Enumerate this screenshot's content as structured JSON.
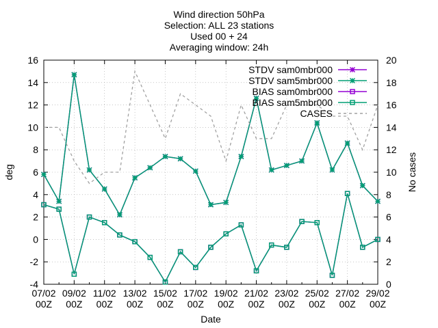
{
  "chart_data": {
    "type": "line",
    "title_lines": [
      "Wind direction 50hPa",
      "Selection: ALL     23 stations",
      "Used 00 + 24",
      "Averaging window: 24h"
    ],
    "xlabel": "Date",
    "ylabel": "deg",
    "y2label": "No cases",
    "ylim": [
      -4,
      16
    ],
    "y2lim": [
      0,
      20
    ],
    "yticks": [
      -4,
      -2,
      0,
      2,
      4,
      6,
      8,
      10,
      12,
      14,
      16
    ],
    "y2ticks": [
      0,
      2,
      4,
      6,
      8,
      10,
      12,
      14,
      16,
      18,
      20
    ],
    "xticks": [
      {
        "line1": "07/02",
        "line2": "00Z"
      },
      {
        "line1": "09/02",
        "line2": "00Z"
      },
      {
        "line1": "11/02",
        "line2": "00Z"
      },
      {
        "line1": "13/02",
        "line2": "00Z"
      },
      {
        "line1": "15/02",
        "line2": "00Z"
      },
      {
        "line1": "17/02",
        "line2": "00Z"
      },
      {
        "line1": "19/02",
        "line2": "00Z"
      },
      {
        "line1": "21/02",
        "line2": "00Z"
      },
      {
        "line1": "23/02",
        "line2": "00Z"
      },
      {
        "line1": "25/02",
        "line2": "00Z"
      },
      {
        "line1": "27/02",
        "line2": "00Z"
      },
      {
        "line1": "29/02",
        "line2": "00Z"
      }
    ],
    "grid": true,
    "legend_position": "top-right",
    "series": [
      {
        "name": "STDV sam0mbr000",
        "color": "#9400d3",
        "marker": "star",
        "dashed": false,
        "axis": "y",
        "values": [
          5.8,
          3.4,
          14.7,
          6.2,
          4.5,
          2.2,
          5.5,
          6.4,
          7.4,
          7.2,
          6.1,
          3.1,
          3.3,
          7.4,
          12.6,
          6.2,
          6.6,
          7.0,
          10.4,
          6.2,
          8.6,
          4.8,
          3.4
        ]
      },
      {
        "name": "STDV sam5mbr000",
        "color": "#009e73",
        "marker": "star",
        "dashed": false,
        "axis": "y",
        "values": [
          5.8,
          3.4,
          14.7,
          6.2,
          4.5,
          2.2,
          5.5,
          6.4,
          7.4,
          7.2,
          6.1,
          3.1,
          3.3,
          7.4,
          12.6,
          6.2,
          6.6,
          7.0,
          10.4,
          6.2,
          8.6,
          4.8,
          3.4
        ]
      },
      {
        "name": "BIAS sam0mbr000",
        "color": "#9400d3",
        "marker": "square",
        "dashed": false,
        "axis": "y",
        "values": [
          3.1,
          2.7,
          -3.1,
          2.0,
          1.5,
          0.4,
          -0.2,
          -1.6,
          -3.8,
          -1.1,
          -2.5,
          -0.7,
          0.5,
          1.3,
          -2.8,
          -0.5,
          -0.7,
          1.6,
          1.5,
          -3.2,
          4.1,
          -0.7,
          0.0
        ]
      },
      {
        "name": "BIAS sam5mbr000",
        "color": "#009e73",
        "marker": "square",
        "dashed": false,
        "axis": "y",
        "values": [
          3.1,
          2.7,
          -3.1,
          2.0,
          1.5,
          0.4,
          -0.2,
          -1.6,
          -3.8,
          -1.1,
          -2.5,
          -0.7,
          0.5,
          1.3,
          -2.8,
          -0.5,
          -0.7,
          1.6,
          1.5,
          -3.2,
          4.1,
          -0.7,
          0.0
        ]
      },
      {
        "name": "CASES",
        "color": "#a0a0a0",
        "marker": "none",
        "dashed": true,
        "axis": "y2",
        "values": [
          14,
          14,
          11,
          9,
          10,
          10,
          19,
          16,
          13,
          17,
          16,
          15,
          11,
          16,
          13,
          13,
          16,
          16,
          16,
          15,
          15,
          12,
          16
        ]
      }
    ]
  }
}
